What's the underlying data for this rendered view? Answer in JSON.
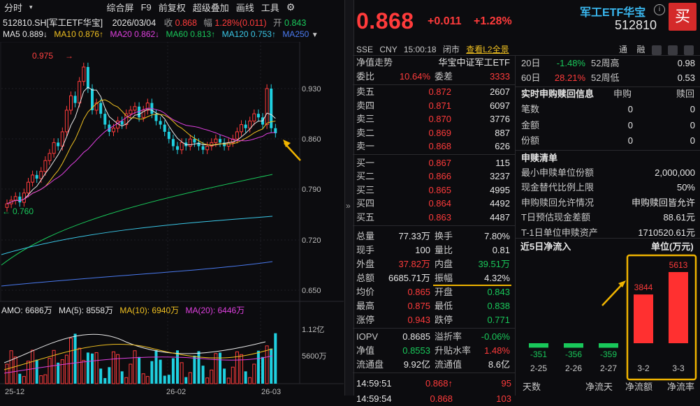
{
  "toolbar": {
    "items": [
      "分时",
      "综合屏",
      "F9",
      "前复权",
      "超级叠加",
      "画线",
      "工具"
    ],
    "dropdown_icon": "triangle-down-icon",
    "gear_icon": "gear-icon"
  },
  "info": {
    "code": "512810.SH[军工ETF华宝]",
    "date": "2026/03/04",
    "close_label": "收",
    "close": "0.868",
    "range_label": "幅",
    "range": "1.28%(0.011)",
    "open_label": "开",
    "open": "0.843"
  },
  "ma": {
    "ma5": "MA5 0.889↓",
    "ma10": "MA10 0.876↑",
    "ma20": "MA20 0.862↓",
    "ma60": "MA60 0.813↑",
    "ma120": "MA120 0.753↑",
    "ma250": "MA250"
  },
  "kline": {
    "price_ticks": [
      "0.930",
      "0.860",
      "0.790",
      "0.720",
      "0.650"
    ],
    "high_mark": "0.975",
    "low_mark": "0.760",
    "x_ticks": [
      "25-12",
      "26-02",
      "26-03"
    ]
  },
  "amo": {
    "label": "AMO: 6686万",
    "ma5": "MA(5): 8558万",
    "ma10": "MA(10): 6940万",
    "ma20": "MA(20): 6446万",
    "ticks": [
      "1.12亿",
      "5600万"
    ]
  },
  "divider_icon": "»",
  "quote": {
    "price": "0.868",
    "change": "+0.011",
    "change_pct": "+1.28%",
    "name": "军工ETF华宝",
    "code": "512810",
    "buy": "买",
    "sub": [
      "SSE",
      "CNY",
      "15:00:18",
      "闭市",
      "查看L2全景"
    ],
    "sub_right": [
      "通",
      "融"
    ]
  },
  "orderbook": {
    "title": "净值走势",
    "title_right": "华宝中证军工ETF",
    "weibi_label": "委比",
    "weibi": "10.64%",
    "weicha_label": "委差",
    "weicha": "3333",
    "sells": [
      {
        "label": "卖五",
        "price": "0.872",
        "vol": "2607"
      },
      {
        "label": "卖四",
        "price": "0.871",
        "vol": "6097"
      },
      {
        "label": "卖三",
        "price": "0.870",
        "vol": "3776"
      },
      {
        "label": "卖二",
        "price": "0.869",
        "vol": "887"
      },
      {
        "label": "卖一",
        "price": "0.868",
        "vol": "626"
      }
    ],
    "buys": [
      {
        "label": "买一",
        "price": "0.867",
        "vol": "115"
      },
      {
        "label": "买二",
        "price": "0.866",
        "vol": "3237"
      },
      {
        "label": "买三",
        "price": "0.865",
        "vol": "4995"
      },
      {
        "label": "买四",
        "price": "0.864",
        "vol": "4492"
      },
      {
        "label": "买五",
        "price": "0.863",
        "vol": "4487"
      }
    ]
  },
  "stats": [
    {
      "l1": "总量",
      "v1": "77.33万",
      "c1": "white",
      "l2": "换手",
      "v2": "7.80%",
      "c2": "white"
    },
    {
      "l1": "现手",
      "v1": "100",
      "c1": "white",
      "l2": "量比",
      "v2": "0.81",
      "c2": "white"
    },
    {
      "l1": "外盘",
      "v1": "37.82万",
      "c1": "red",
      "l2": "内盘",
      "v2": "39.51万",
      "c2": "green"
    },
    {
      "l1": "总额",
      "v1": "6685.71万",
      "c1": "white",
      "l2": "振幅",
      "v2": "4.32%",
      "c2": "white"
    },
    {
      "l1": "均价",
      "v1": "0.865",
      "c1": "red",
      "l2": "开盘",
      "v2": "0.843",
      "c2": "green"
    },
    {
      "l1": "最高",
      "v1": "0.875",
      "c1": "red",
      "l2": "最低",
      "v2": "0.838",
      "c2": "green"
    },
    {
      "l1": "涨停",
      "v1": "0.943",
      "c1": "red",
      "l2": "跌停",
      "v2": "0.771",
      "c2": "green"
    }
  ],
  "iopv": [
    {
      "l1": "IOPV",
      "v1": "0.8685",
      "c1": "white",
      "l2": "溢折率",
      "v2": "-0.06%",
      "c2": "green"
    },
    {
      "l1": "净值",
      "v1": "0.8553",
      "c1": "green",
      "l2": "升贴水率",
      "v2": "1.48%",
      "c2": "red"
    },
    {
      "l1": "流通盘",
      "v1": "9.92亿",
      "c1": "white",
      "l2": "流通值",
      "v2": "8.6亿",
      "c2": "white"
    }
  ],
  "ticks": [
    {
      "time": "14:59:51",
      "price": "0.868↑",
      "vol": "95"
    },
    {
      "time": "14:59:54",
      "price": "0.868",
      "vol": "103"
    }
  ],
  "period": [
    {
      "l1": "20日",
      "v1": "-1.48%",
      "c1": "green",
      "l2": "52周高",
      "v2": "0.98"
    },
    {
      "l1": "60日",
      "v1": "28.21%",
      "c1": "red",
      "l2": "52周低",
      "v2": "0.53"
    }
  ],
  "redeem": {
    "title": "实时申购赎回信息",
    "col1": "申购",
    "col2": "赎回",
    "rows": [
      {
        "label": "笔数",
        "a": "0",
        "b": "0"
      },
      {
        "label": "金额",
        "a": "0",
        "b": "0"
      },
      {
        "label": "份额",
        "a": "0",
        "b": "0"
      }
    ]
  },
  "list": {
    "title": "申赎清单",
    "rows": [
      {
        "label": "最小申赎单位份额",
        "value": "2,000,000"
      },
      {
        "label": "现金替代比例上限",
        "value": "50%"
      },
      {
        "label": "申购赎回允许情况",
        "value": "申购赎回皆允许"
      },
      {
        "label": "T日预估现金差额",
        "value": "88.61元"
      },
      {
        "label": "T-1日单位申赎资产",
        "value": "1710520.61元"
      }
    ]
  },
  "flow": {
    "title": "近5日净流入",
    "unit": "单位(万元)",
    "footer": [
      "天数",
      "净流天",
      "净流额",
      "净流率"
    ]
  },
  "chart_data": {
    "type": "bar",
    "title": "近5日净流入",
    "ylabel": "单位(万元)",
    "categories": [
      "2-25",
      "2-26",
      "2-27",
      "3-2",
      "3-3"
    ],
    "values": [
      -351,
      -356,
      -359,
      3844,
      5613
    ],
    "colors": {
      "positive": "#ff3030",
      "negative": "#19c85a"
    }
  }
}
